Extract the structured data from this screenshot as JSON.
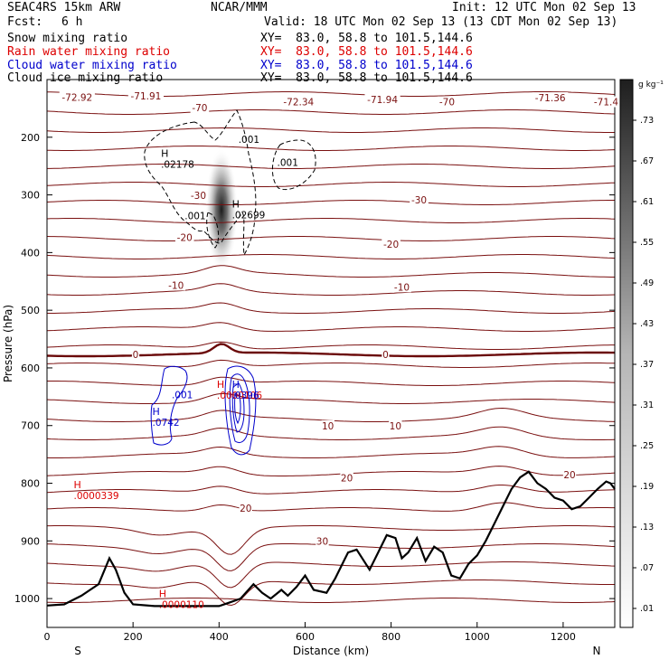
{
  "header": {
    "model": "SEAC4RS 15km ARW",
    "org": "NCAR/MMM",
    "init": "Init: 12 UTC Mon 02 Sep 13",
    "fcst_label": "Fcst:",
    "fcst_value": "6 h",
    "valid": "Valid: 18 UTC Mon 02 Sep 13 (13 CDT Mon 02 Sep 13)",
    "fields": [
      {
        "name": "Snow mixing ratio",
        "xy": "XY=  83.0, 58.8 to 101.5,144.6",
        "color": "#000000"
      },
      {
        "name": "Rain water mixing ratio",
        "xy": "XY=  83.0, 58.8 to 101.5,144.6",
        "color": "#dd0000"
      },
      {
        "name": "Cloud water mixing ratio",
        "xy": "XY=  83.0, 58.8 to 101.5,144.6",
        "color": "#0000cc"
      },
      {
        "name": "Cloud ice mixing ratio",
        "xy": "XY=  83.0, 58.8 to 101.5,144.6",
        "color": "#000000"
      }
    ]
  },
  "colors": {
    "temperature": "#7a1010",
    "terrain": "#000000",
    "rain": "#dd0000",
    "cloud_water": "#0000cc",
    "cloud_ice": "#000000"
  },
  "chart_data": {
    "type": "contour",
    "xlabel": "Distance (km)",
    "ylabel": "Pressure (hPa)",
    "x_range": [
      0,
      1320
    ],
    "y_range": [
      1050,
      100
    ],
    "x_ticks": [
      0,
      200,
      400,
      600,
      800,
      1000,
      1200
    ],
    "y_ticks": [
      200,
      300,
      400,
      500,
      600,
      700,
      800,
      900,
      1000
    ],
    "x_endpoints": {
      "left": "S",
      "right": "N"
    },
    "colorbar": {
      "unit": "g kg⁻¹",
      "labels": [
        ".73",
        ".67",
        ".61",
        ".55",
        ".49",
        ".43",
        ".37",
        ".31",
        ".25",
        ".19",
        ".13",
        ".07",
        ".01"
      ]
    },
    "temperature_labels": [
      {
        "text": "-72.92",
        "x": 70,
        "p": 132
      },
      {
        "text": "-71.91",
        "x": 230,
        "p": 130
      },
      {
        "text": "-70",
        "x": 355,
        "p": 150
      },
      {
        "text": "-72.34",
        "x": 585,
        "p": 140
      },
      {
        "text": "-71.94",
        "x": 780,
        "p": 136
      },
      {
        "text": "-70",
        "x": 930,
        "p": 140
      },
      {
        "text": "-71.36",
        "x": 1170,
        "p": 133
      },
      {
        "text": "-71.4",
        "x": 1300,
        "p": 140
      },
      {
        "text": "-30",
        "x": 352,
        "p": 302
      },
      {
        "text": "-30",
        "x": 865,
        "p": 310
      },
      {
        "text": "-20",
        "x": 320,
        "p": 375
      },
      {
        "text": "-20",
        "x": 800,
        "p": 387
      },
      {
        "text": "-10",
        "x": 300,
        "p": 458
      },
      {
        "text": "-10",
        "x": 825,
        "p": 461
      },
      {
        "text": "0",
        "x": 206,
        "p": 578
      },
      {
        "text": "0",
        "x": 787,
        "p": 578
      },
      {
        "text": "10",
        "x": 653,
        "p": 702
      },
      {
        "text": "10",
        "x": 810,
        "p": 702
      },
      {
        "text": "20",
        "x": 697,
        "p": 792
      },
      {
        "text": "20",
        "x": 1215,
        "p": 787
      },
      {
        "text": "20",
        "x": 462,
        "p": 845
      },
      {
        "text": "30",
        "x": 640,
        "p": 902
      }
    ],
    "extremum_labels": [
      {
        "mark": "H",
        "value": ".02178",
        "x": 265,
        "p": 240,
        "color": "#000000"
      },
      {
        "mark": "H",
        "value": ".02699",
        "x": 430,
        "p": 328,
        "color": "#000000"
      },
      {
        "mark": "",
        "value": ".001",
        "x": 445,
        "p": 197,
        "color": "#000000"
      },
      {
        "mark": "",
        "value": ".001",
        "x": 535,
        "p": 237,
        "color": "#000000"
      },
      {
        "mark": "",
        "value": ".001",
        "x": 320,
        "p": 330,
        "color": "#000000"
      },
      {
        "mark": "H",
        "value": ".0000106",
        "x": 395,
        "p": 641,
        "color": "#dd0000"
      },
      {
        "mark": "H",
        "value": ".0000339",
        "x": 62,
        "p": 815,
        "color": "#dd0000"
      },
      {
        "mark": "H",
        "value": ".0000110",
        "x": 260,
        "p": 1004,
        "color": "#dd0000"
      },
      {
        "mark": "H",
        "value": ".0742",
        "x": 245,
        "p": 688,
        "color": "#0000cc"
      },
      {
        "mark": "",
        "value": ".001",
        "x": 290,
        "p": 640,
        "color": "#0000cc"
      },
      {
        "mark": "H",
        "value": ".0396",
        "x": 430,
        "p": 641,
        "color": "#0000cc"
      }
    ],
    "terrain": {
      "x": [
        0,
        40,
        80,
        100,
        120,
        145,
        160,
        180,
        200,
        250,
        300,
        350,
        400,
        420,
        450,
        480,
        500,
        520,
        545,
        560,
        580,
        600,
        620,
        650,
        670,
        700,
        720,
        750,
        770,
        790,
        810,
        825,
        840,
        860,
        880,
        900,
        920,
        940,
        960,
        980,
        1000,
        1020,
        1040,
        1060,
        1080,
        1100,
        1120,
        1140,
        1160,
        1180,
        1200,
        1220,
        1240,
        1260,
        1280,
        1300,
        1310,
        1320
      ],
      "p": [
        1012,
        1010,
        995,
        985,
        975,
        930,
        950,
        990,
        1010,
        1013,
        1013,
        1013,
        1013,
        1008,
        1000,
        975,
        990,
        1000,
        985,
        995,
        980,
        960,
        985,
        990,
        965,
        920,
        915,
        950,
        920,
        890,
        895,
        930,
        920,
        895,
        935,
        910,
        920,
        960,
        965,
        940,
        925,
        900,
        870,
        840,
        810,
        790,
        780,
        800,
        810,
        825,
        830,
        845,
        840,
        825,
        810,
        797,
        800,
        810
      ]
    }
  }
}
